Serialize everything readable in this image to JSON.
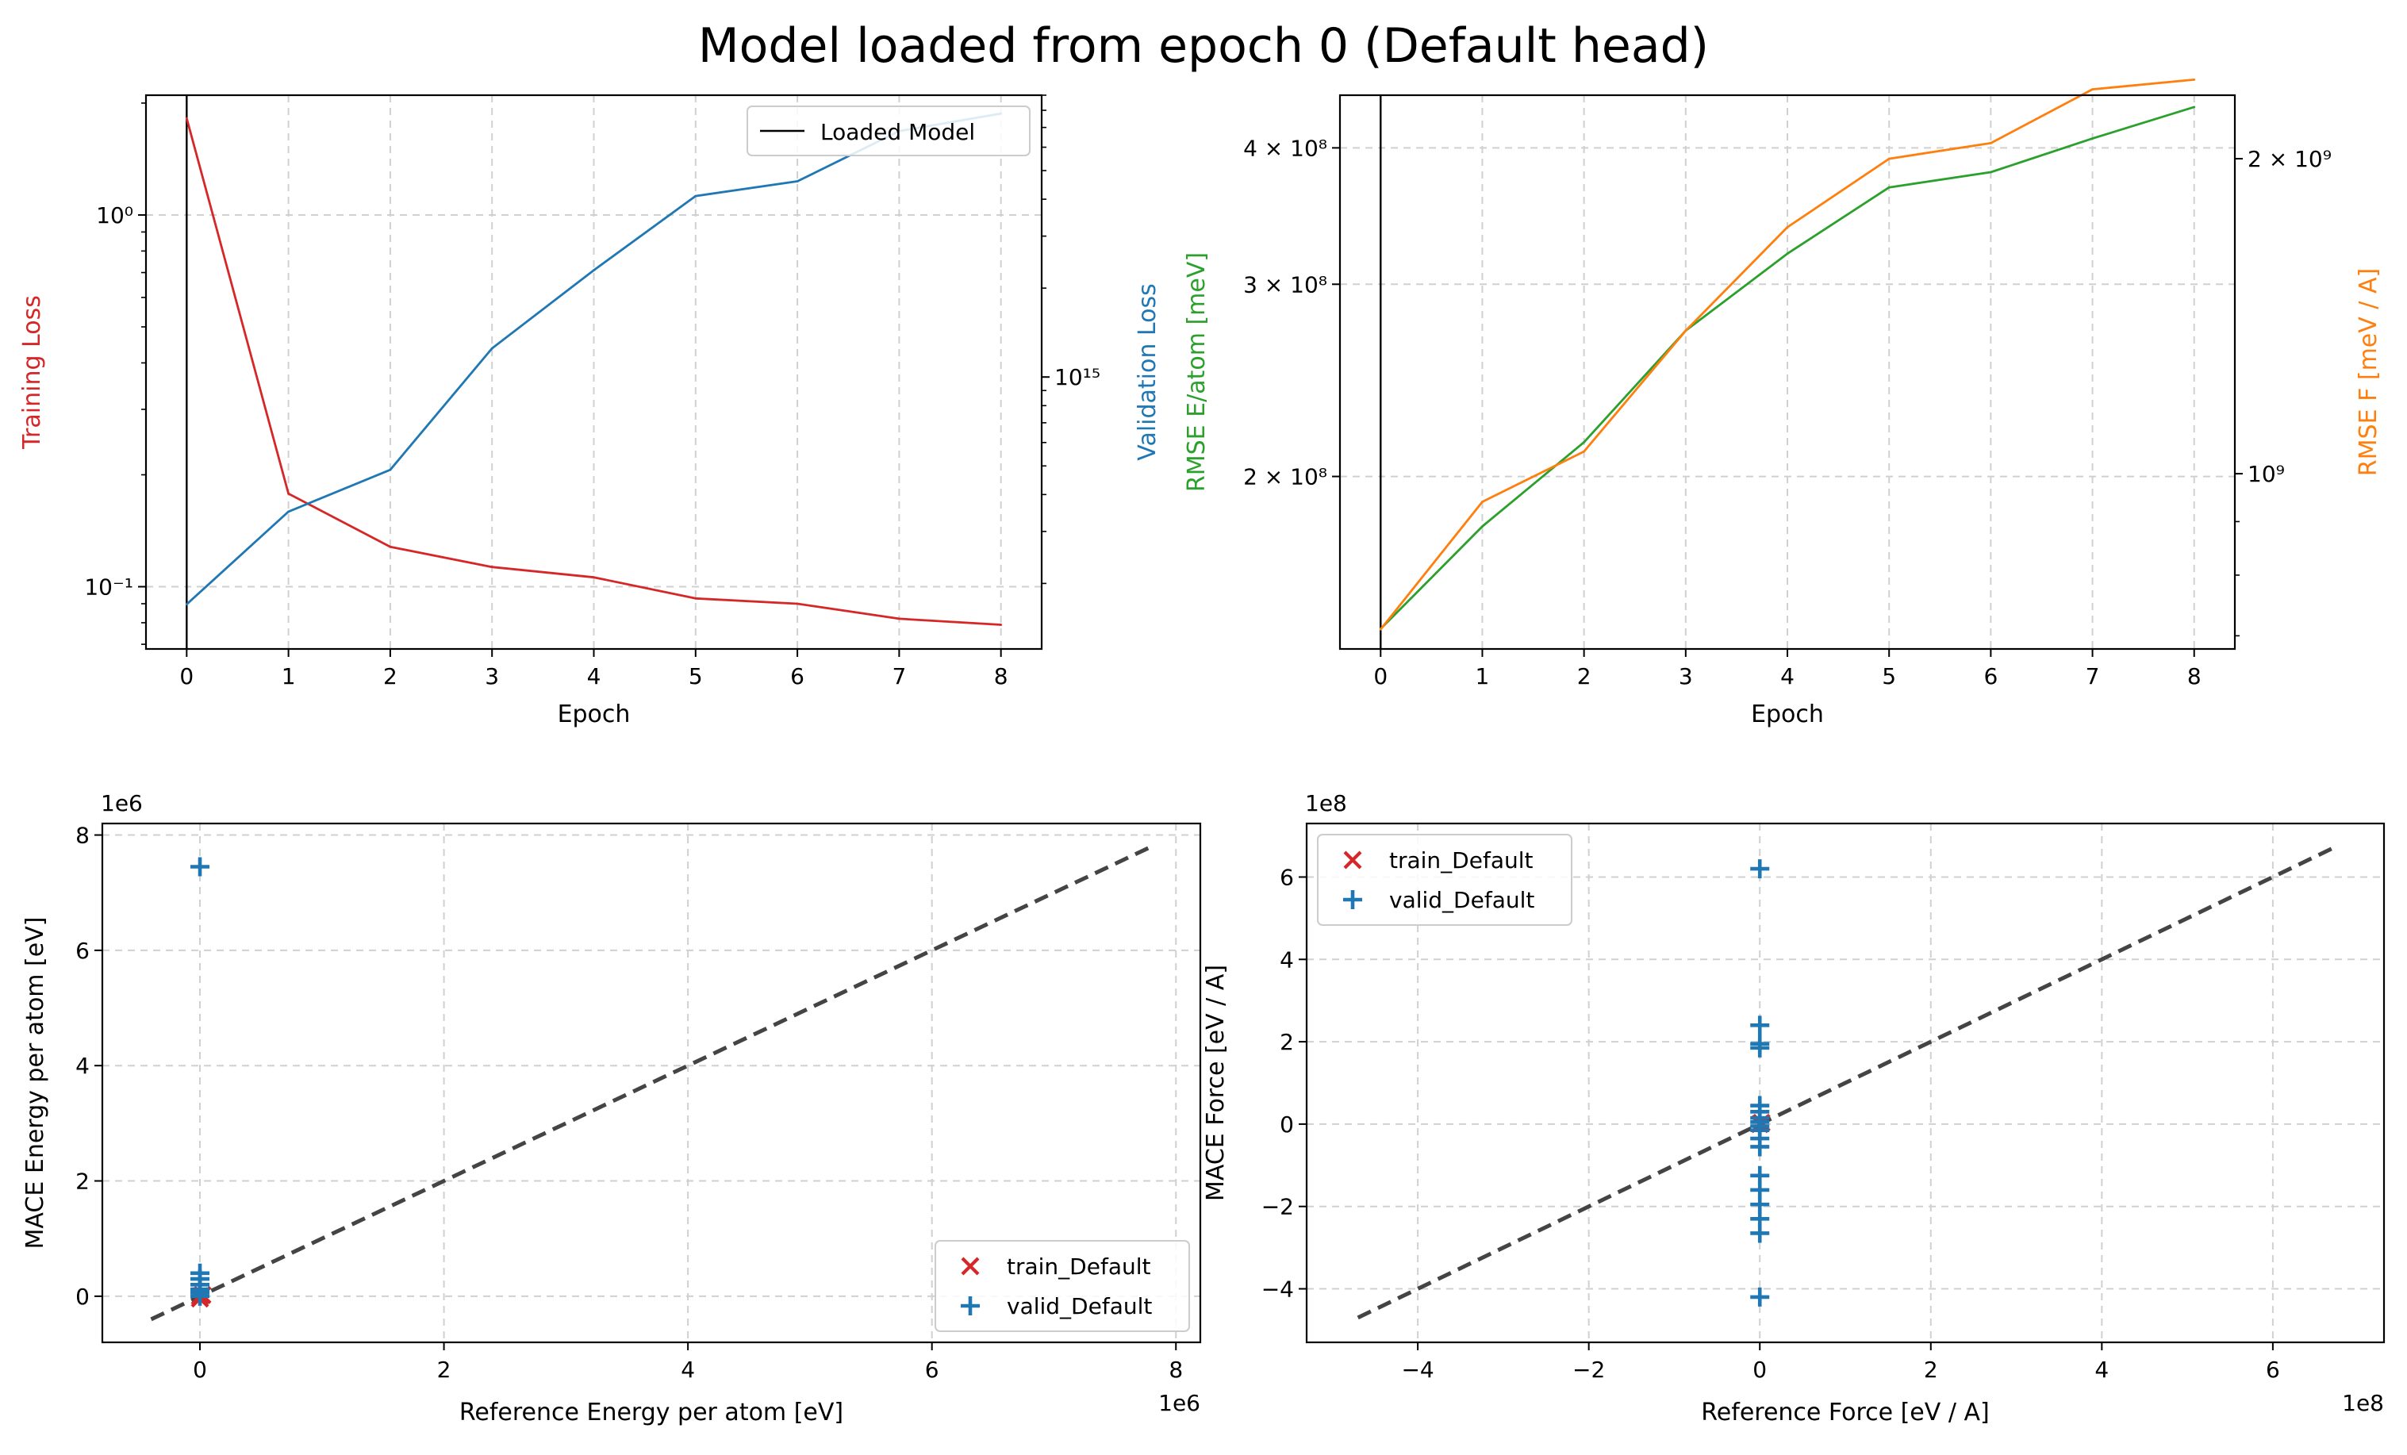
{
  "figure_title": "Model loaded from epoch 0 (Default head)",
  "colors": {
    "train": "#d62728",
    "valid": "#1f77b4",
    "energy": "#2ca02c",
    "force": "#ff7f0e",
    "loaded": "#000000",
    "diagonal": "#444444"
  },
  "chart_data": [
    {
      "type": "line",
      "title": "",
      "xlabel": "Epoch",
      "ylabel": "Training Loss",
      "ylabel_right": "Validation Loss",
      "x": [
        0,
        1,
        2,
        3,
        4,
        5,
        6,
        7,
        8
      ],
      "xlim": [
        -0.4,
        8.4
      ],
      "yscale_left": "log",
      "ylim_left": [
        0.068,
        2.1
      ],
      "yscale_right": "log",
      "ylim_right": [
        120000000000000.0,
        9000000000000000.0
      ],
      "series": [
        {
          "name": "Training Loss",
          "axis": "left",
          "color": "#d62728",
          "values": [
            1.82,
            0.178,
            0.128,
            0.113,
            0.106,
            0.093,
            0.09,
            0.082,
            0.079
          ]
        },
        {
          "name": "Validation Loss",
          "axis": "right",
          "color": "#1f77b4",
          "values": [
            170000000000000.0,
            350000000000000.0,
            485000000000000.0,
            1250000000000000.0,
            2300000000000000.0,
            4100000000000000.0,
            4600000000000000.0,
            6800000000000000.0,
            7800000000000000.0
          ]
        }
      ],
      "vline": {
        "x": 0,
        "label": "Loaded Model"
      },
      "legend": [
        "Loaded Model"
      ],
      "legend_position": "top-right",
      "yticks_left": [
        {
          "value": 1.0,
          "label": "10⁰"
        },
        {
          "value": 0.1,
          "label": "10⁻¹"
        }
      ],
      "yticks_right": [
        {
          "value": 1000000000000000.0,
          "label": "10¹⁵"
        }
      ],
      "grid": true
    },
    {
      "type": "line",
      "title": "",
      "xlabel": "Epoch",
      "ylabel": "RMSE E/atom [meV]",
      "ylabel_right": "RMSE F [meV / A]",
      "x": [
        0,
        1,
        2,
        3,
        4,
        5,
        6,
        7,
        8
      ],
      "xlim": [
        -0.4,
        8.4
      ],
      "yscale_left": "log",
      "ylim_left": [
        139000000.0,
        447000000.0
      ],
      "yscale_right": "log",
      "ylim_right": [
        680000000.0,
        2300000000.0
      ],
      "series": [
        {
          "name": "RMSE E/atom [meV]",
          "axis": "left",
          "color": "#2ca02c",
          "values": [
            145000000.0,
            180000000.0,
            215000000.0,
            272000000.0,
            320000000.0,
            368000000.0,
            380000000.0,
            408000000.0,
            436000000.0
          ]
        },
        {
          "name": "RMSE F [meV / A]",
          "axis": "right",
          "color": "#ff7f0e",
          "values": [
            710000000.0,
            940000000.0,
            1050000000.0,
            1370000000.0,
            1720000000.0,
            2000000000.0,
            2070000000.0,
            2330000000.0,
            2380000000.0
          ]
        }
      ],
      "vline": {
        "x": 0
      },
      "yticks_left": [
        {
          "value": 400000000.0,
          "label": "4 × 10⁸"
        },
        {
          "value": 300000000.0,
          "label": "3 × 10⁸"
        },
        {
          "value": 200000000.0,
          "label": "2 × 10⁸"
        }
      ],
      "yticks_right": [
        {
          "value": 2000000000.0,
          "label": "2 × 10⁹"
        },
        {
          "value": 1000000000.0,
          "label": "10⁹"
        }
      ],
      "grid": true
    },
    {
      "type": "scatter",
      "title": "",
      "xlabel": "Reference Energy per atom [eV]",
      "ylabel": "MACE Energy per atom [eV]",
      "x_offset_text": "1e6",
      "y_offset_text": "1e6",
      "xlim": [
        -0.8,
        8.2
      ],
      "ylim": [
        -0.8,
        8.2
      ],
      "xticks": [
        0,
        2,
        4,
        6,
        8
      ],
      "yticks": [
        0,
        2,
        4,
        6,
        8
      ],
      "diagonal": [
        -0.4,
        7.8
      ],
      "series": [
        {
          "name": "train_Default",
          "marker": "x",
          "color": "#d62728",
          "points": [
            [
              0,
              0
            ],
            [
              0,
              -0.04
            ],
            [
              0.02,
              0.02
            ]
          ]
        },
        {
          "name": "valid_Default",
          "marker": "+",
          "color": "#1f77b4",
          "points": [
            [
              0,
              7.45
            ],
            [
              0,
              0.4
            ],
            [
              0,
              0.3
            ],
            [
              0,
              0.2
            ],
            [
              0,
              0.12
            ],
            [
              0,
              0.06
            ],
            [
              0,
              0.0
            ]
          ]
        }
      ],
      "legend": [
        "train_Default",
        "valid_Default"
      ],
      "legend_position": "bottom-right",
      "grid": true
    },
    {
      "type": "scatter",
      "title": "",
      "xlabel": "Reference Force [eV / A]",
      "ylabel": "MACE Force [eV / A]",
      "x_offset_text": "1e8",
      "y_offset_text": "1e8",
      "xlim": [
        -5.3,
        7.3
      ],
      "ylim": [
        -5.3,
        7.3
      ],
      "xticks": [
        -4,
        -2,
        0,
        2,
        4,
        6
      ],
      "yticks": [
        -4,
        -2,
        0,
        2,
        4,
        6
      ],
      "diagonal": [
        -4.7,
        6.7
      ],
      "series": [
        {
          "name": "train_Default",
          "marker": "x",
          "color": "#d62728",
          "points": [
            [
              0,
              0
            ],
            [
              0.02,
              0.03
            ]
          ]
        },
        {
          "name": "valid_Default",
          "marker": "+",
          "color": "#1f77b4",
          "points": [
            [
              0,
              6.2
            ],
            [
              0,
              2.4
            ],
            [
              0,
              1.95
            ],
            [
              0,
              1.85
            ],
            [
              0,
              0.45
            ],
            [
              0,
              0.3
            ],
            [
              0,
              0.15
            ],
            [
              0,
              0.05
            ],
            [
              0,
              -0.05
            ],
            [
              0,
              -0.15
            ],
            [
              0,
              -0.35
            ],
            [
              0,
              -0.55
            ],
            [
              0,
              -1.25
            ],
            [
              0,
              -1.6
            ],
            [
              0,
              -1.95
            ],
            [
              0,
              -2.3
            ],
            [
              0,
              -2.65
            ],
            [
              0,
              -4.2
            ]
          ]
        }
      ],
      "legend": [
        "train_Default",
        "valid_Default"
      ],
      "legend_position": "top-left",
      "grid": true
    }
  ]
}
